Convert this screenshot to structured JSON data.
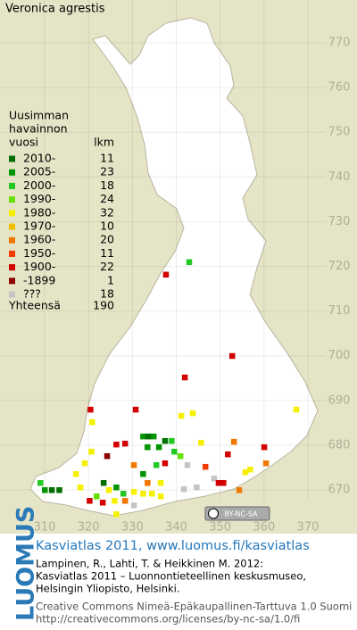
{
  "title": "Veronica agrestis",
  "legend": {
    "heading": [
      "Uusimman",
      "havainnon"
    ],
    "col_period": "vuosi",
    "col_count": "lkm",
    "items": [
      {
        "label": "2010-",
        "count": 11,
        "color": "#006e00"
      },
      {
        "label": "2005-",
        "count": 23,
        "color": "#009400"
      },
      {
        "label": "2000-",
        "count": 18,
        "color": "#22c822"
      },
      {
        "label": "1990-",
        "count": 24,
        "color": "#66e000"
      },
      {
        "label": "1980-",
        "count": 32,
        "color": "#f4f000"
      },
      {
        "label": "1970-",
        "count": 10,
        "color": "#f0c000"
      },
      {
        "label": "1960-",
        "count": 20,
        "color": "#f07800"
      },
      {
        "label": "1950-",
        "count": 11,
        "color": "#f03c00"
      },
      {
        "label": "1900-",
        "count": 22,
        "color": "#d20000"
      },
      {
        "label": "-1899",
        "count": 1,
        "color": "#8c0000"
      },
      {
        "label": "???",
        "count": 18,
        "color": "#c4c4c4"
      }
    ],
    "total_label": "Yhteensä",
    "total": 190
  },
  "map_grid": {
    "xticks": [
      310,
      320,
      330,
      340,
      350,
      360,
      370
    ],
    "yticks": [
      770,
      760,
      750,
      740,
      730,
      720,
      710,
      700,
      690,
      680,
      670
    ]
  },
  "squares": [
    [
      337.6,
      718.2,
      8
    ],
    [
      342.9,
      721.0,
      2
    ],
    [
      352.7,
      700.0,
      8
    ],
    [
      341.9,
      695.2,
      8
    ],
    [
      320.4,
      688.0,
      8
    ],
    [
      320.8,
      685.2,
      4
    ],
    [
      343.7,
      687.2,
      4
    ],
    [
      341.1,
      686.6,
      4
    ],
    [
      367.3,
      688.0,
      4
    ],
    [
      330.7,
      688.0,
      8
    ],
    [
      332.4,
      682.0,
      1
    ],
    [
      333.6,
      682.0,
      0
    ],
    [
      334.8,
      682.0,
      1
    ],
    [
      337.4,
      681.0,
      0
    ],
    [
      338.9,
      681.0,
      2
    ],
    [
      326.3,
      680.2,
      8
    ],
    [
      328.3,
      680.4,
      8
    ],
    [
      336.0,
      679.6,
      1
    ],
    [
      333.4,
      679.6,
      1
    ],
    [
      353.1,
      680.8,
      6
    ],
    [
      360.0,
      679.6,
      8
    ],
    [
      360.4,
      676.0,
      6
    ],
    [
      356.8,
      674.6,
      4
    ],
    [
      320.6,
      678.6,
      4
    ],
    [
      324.2,
      677.6,
      9
    ],
    [
      319.1,
      676.0,
      4
    ],
    [
      330.3,
      675.6,
      6
    ],
    [
      337.4,
      676.0,
      8
    ],
    [
      342.5,
      675.6,
      10
    ],
    [
      346.6,
      675.2,
      7
    ],
    [
      348.6,
      672.6,
      10
    ],
    [
      344.6,
      670.6,
      10
    ],
    [
      341.7,
      670.2,
      10
    ],
    [
      350.7,
      671.6,
      8
    ],
    [
      354.3,
      670.0,
      6
    ],
    [
      355.7,
      674.0,
      4
    ],
    [
      311.6,
      670.0,
      0
    ],
    [
      310.0,
      670.0,
      1
    ],
    [
      313.3,
      670.0,
      0
    ],
    [
      309.0,
      671.6,
      2
    ],
    [
      323.4,
      671.6,
      0
    ],
    [
      324.6,
      670.0,
      4
    ],
    [
      326.3,
      670.6,
      1
    ],
    [
      327.9,
      669.2,
      2
    ],
    [
      321.8,
      668.6,
      3
    ],
    [
      325.9,
      667.6,
      4
    ],
    [
      330.3,
      669.6,
      4
    ],
    [
      332.4,
      669.2,
      4
    ],
    [
      334.4,
      669.2,
      4
    ],
    [
      336.4,
      668.6,
      4
    ],
    [
      328.3,
      667.6,
      6
    ],
    [
      320.2,
      667.6,
      8
    ],
    [
      318.1,
      670.6,
      4
    ],
    [
      317.1,
      673.6,
      4
    ],
    [
      332.4,
      673.6,
      1
    ],
    [
      335.4,
      675.6,
      2
    ],
    [
      339.5,
      678.6,
      2
    ],
    [
      340.9,
      677.6,
      3
    ],
    [
      336.4,
      671.6,
      4
    ],
    [
      326.3,
      664.6,
      4
    ],
    [
      323.2,
      667.2,
      8
    ],
    [
      330.3,
      666.6,
      10
    ],
    [
      333.4,
      671.6,
      6
    ],
    [
      351.7,
      678.0,
      8
    ],
    [
      345.6,
      680.6,
      4
    ],
    [
      349.6,
      671.6,
      8
    ]
  ],
  "badge": "BY-NC-SA",
  "footer": {
    "logo": "LUOMUS",
    "link": "Kasviatlas 2011, www.luomus.fi/kasviatlas",
    "citation": [
      "Lampinen, R., Lahti, T. & Heikkinen M. 2012:",
      "Kasviatlas 2011 – Luonnontieteellinen keskusmuseo,",
      "Helsingin Yliopisto, Helsinki."
    ],
    "license": [
      "Creative Commons Nimeä-Epäkaupallinen-Tarttuva 1.0 Suomi",
      "http://creativecommons.org/licenses/by-nc-sa/1.0/fi"
    ]
  }
}
